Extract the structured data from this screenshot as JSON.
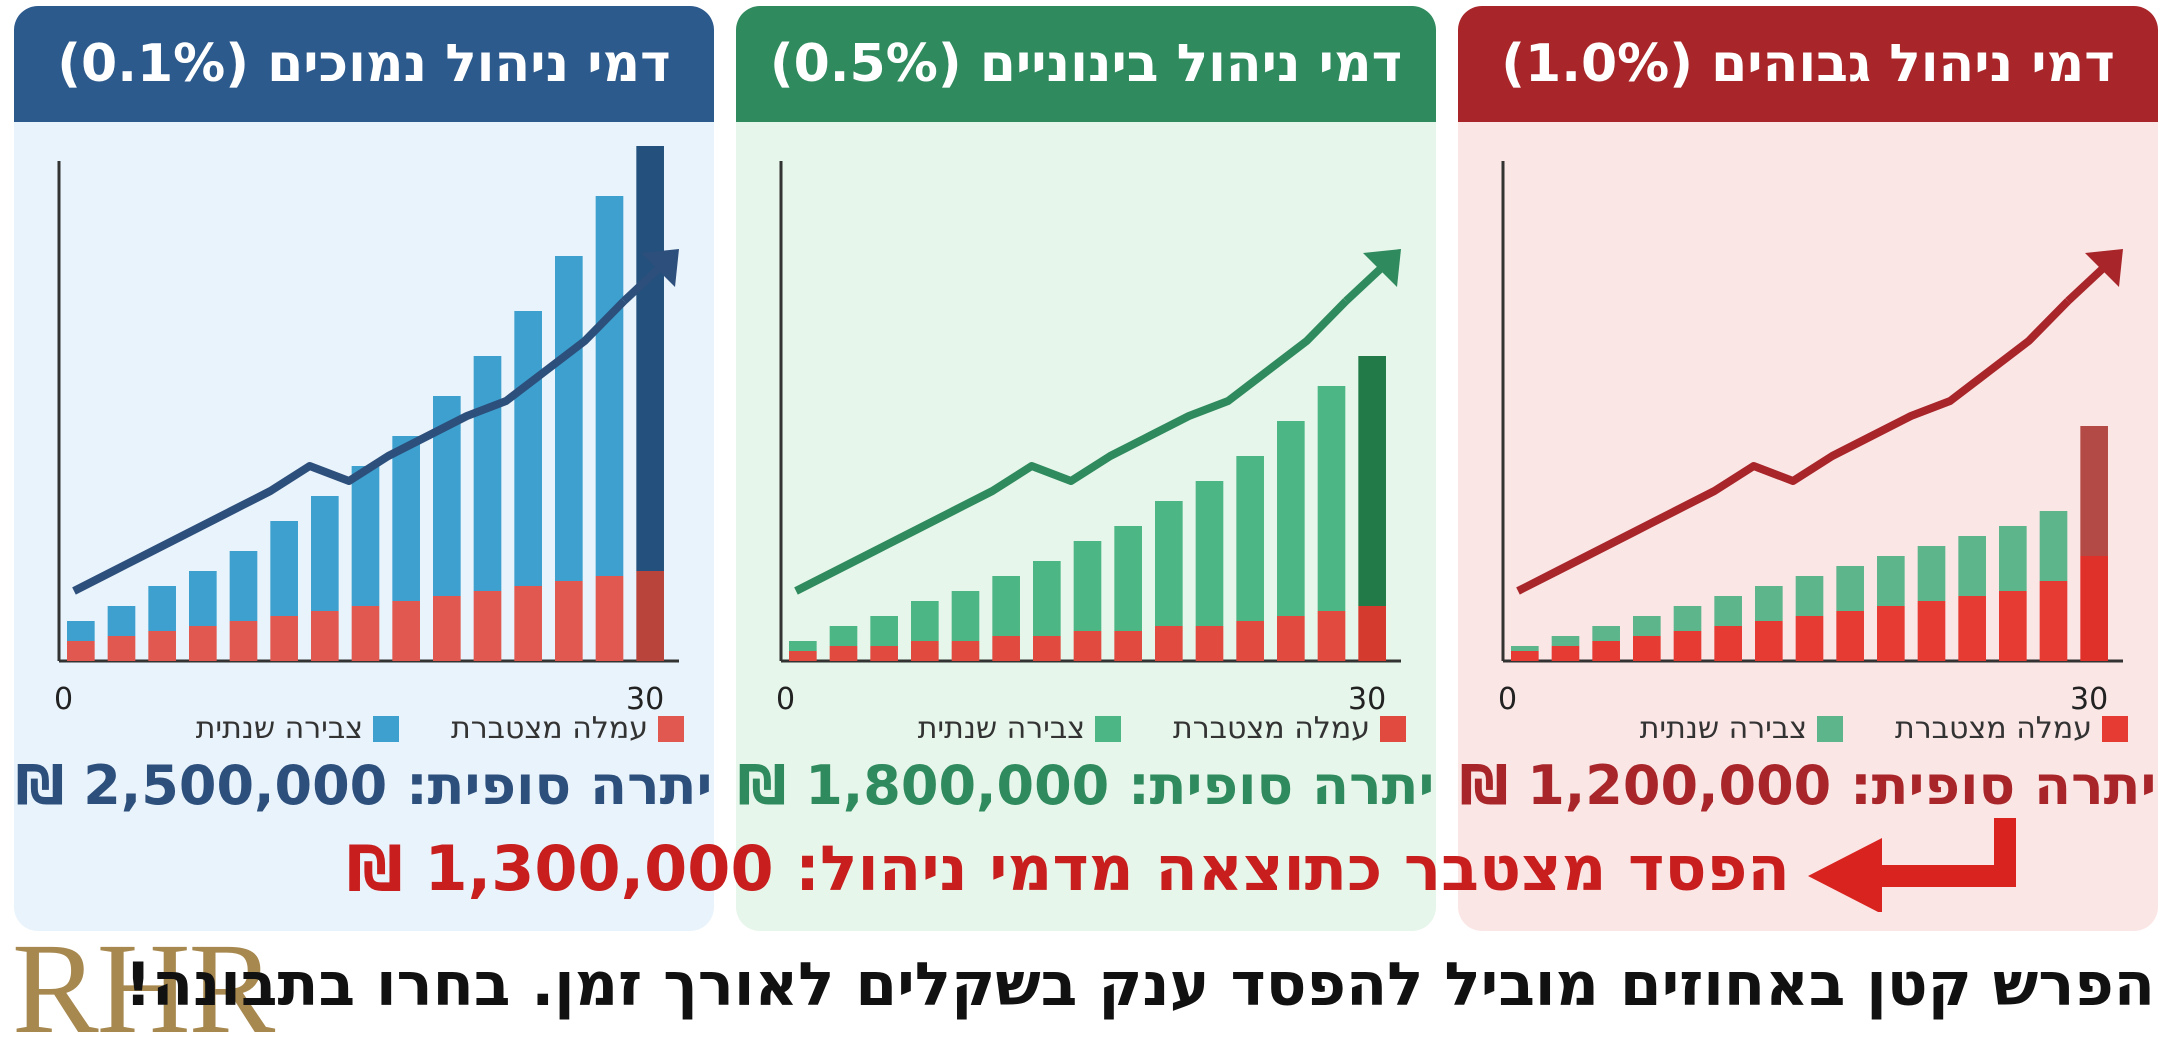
{
  "panels": [
    {
      "title": "דמי ניהול נמוכים (0.1%)",
      "header_color": "#2d5a8c",
      "bg_color": "#e9f3fb",
      "value_color": "#2d4f7c",
      "contrib_color": "#3da0cf",
      "fee_color": "#e0584f",
      "final_label": "יתרה סופית:",
      "final_value": "2,500,000 ₪"
    },
    {
      "title": "דמי ניהול בינוניים (0.5%)",
      "header_color": "#2f8a5e",
      "bg_color": "#e6f6ea",
      "value_color": "#2f8a5e",
      "contrib_color": "#4cb784",
      "fee_color": "#e04a3f",
      "final_label": "יתרה סופית:",
      "final_value": "1,800,000 ₪"
    },
    {
      "title": "דמי ניהול גבוהים (1.0%)",
      "header_color": "#a8262a",
      "bg_color": "#fbe6e6",
      "value_color": "#a8262a",
      "contrib_color": "#5db58c",
      "fee_color": "#e53b33",
      "final_label": "יתרה סופית:",
      "final_value": "1,200,000 ₪"
    }
  ],
  "legend": {
    "fee": "עמלה מצטברת",
    "contribution": "צבירה שנתית"
  },
  "loss_text": "הפסד מצטבר כתוצאה מדמי ניהול: 1,300,000 ₪",
  "logo": "RHR",
  "footer": "הפרש קטן באחוזים מוביל להפסד ענק בשקלים לאורך זמן. בחרו בתבונה!",
  "chart_data": [
    {
      "type": "bar",
      "title": "דמי ניהול נמוכים (0.1%)",
      "x_ticks": [
        "0",
        "30"
      ],
      "series": [
        {
          "name": "עמלה מצטברת",
          "values": [
            4,
            5,
            6,
            7,
            8,
            9,
            10,
            11,
            12,
            13,
            14,
            15,
            16,
            17,
            18
          ]
        },
        {
          "name": "צבירה שנתית",
          "values": [
            4,
            6,
            9,
            11,
            14,
            19,
            23,
            28,
            33,
            40,
            47,
            55,
            65,
            76,
            91
          ]
        }
      ],
      "trend": [
        14,
        18,
        22,
        26,
        30,
        34,
        39,
        36,
        41,
        45,
        49,
        52,
        58,
        64,
        72
      ],
      "ylim": [
        0,
        100
      ]
    },
    {
      "type": "bar",
      "title": "דמי ניהול בינוניים (0.5%)",
      "x_ticks": [
        "0",
        "30"
      ],
      "series": [
        {
          "name": "עמלה מצטברת",
          "values": [
            2,
            3,
            3,
            4,
            4,
            5,
            5,
            6,
            6,
            7,
            7,
            8,
            9,
            10,
            11
          ]
        },
        {
          "name": "צבירה שנתית",
          "values": [
            2,
            4,
            6,
            8,
            10,
            12,
            15,
            18,
            21,
            25,
            29,
            33,
            39,
            45,
            50
          ]
        }
      ],
      "trend": [
        14,
        18,
        22,
        26,
        30,
        34,
        39,
        36,
        41,
        45,
        49,
        52,
        58,
        64,
        72
      ],
      "ylim": [
        0,
        100
      ]
    },
    {
      "type": "bar",
      "title": "דמי ניהול גבוהים (1.0%)",
      "x_ticks": [
        "0",
        "30"
      ],
      "series": [
        {
          "name": "עמלה מצטברת",
          "values": [
            2,
            3,
            4,
            5,
            6,
            7,
            8,
            9,
            10,
            11,
            12,
            13,
            14,
            16,
            21
          ]
        },
        {
          "name": "צבירה שנתית",
          "values": [
            1,
            2,
            3,
            4,
            5,
            6,
            7,
            8,
            9,
            10,
            11,
            12,
            13,
            14,
            26
          ]
        }
      ],
      "trend": [
        14,
        18,
        22,
        26,
        30,
        34,
        39,
        36,
        41,
        45,
        49,
        52,
        58,
        64,
        72
      ],
      "ylim": [
        0,
        100
      ]
    }
  ]
}
